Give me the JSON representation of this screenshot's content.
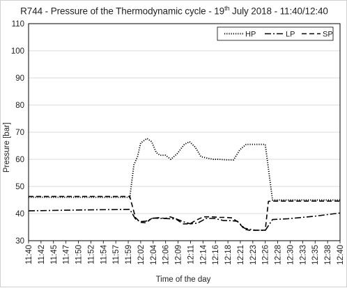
{
  "chart_data": {
    "type": "line",
    "title_main": "R744 - Pressure of the Thermodynamic cycle - 19",
    "title_sup": "th",
    "title_tail": " July 2018 - 11:40/12:40",
    "xlabel": "Time of the day",
    "ylabel": "Pressure [bar]",
    "ylim": [
      30,
      110
    ],
    "yticks": [
      30,
      40,
      50,
      60,
      70,
      80,
      90,
      100,
      110
    ],
    "xlim": [
      0,
      60
    ],
    "x_tick_labels": [
      "11:40",
      "11:42",
      "11:45",
      "11:47",
      "11:50",
      "11:52",
      "11:54",
      "11:57",
      "11:59",
      "12:02",
      "12:04",
      "12:06",
      "12:09",
      "12:11",
      "12:14",
      "12:16",
      "12:18",
      "12:21",
      "12:23",
      "12:26",
      "12:28",
      "12:30",
      "12:33",
      "12:35",
      "12:38",
      "12:40"
    ],
    "grid": "horizontal",
    "legend_position": "top-right",
    "series": [
      {
        "name": "HP",
        "style": "dotted",
        "x": [
          0,
          5,
          10,
          15,
          19.5,
          20.3,
          21,
          21.6,
          22.8,
          23.7,
          24.6,
          25.3,
          26.4,
          27.4,
          28.6,
          30,
          31,
          32.1,
          33.2,
          34.3,
          35.5,
          36.6,
          38.2,
          39.5,
          40.7,
          41.9,
          42.4,
          43.5,
          45.6,
          47,
          50,
          55,
          60
        ],
        "y": [
          46,
          46,
          46,
          46,
          46,
          58,
          61,
          66,
          67.7,
          66.5,
          62.5,
          61.5,
          61.5,
          60,
          62,
          65.5,
          66.5,
          64.5,
          61,
          60.5,
          60,
          60,
          59.8,
          59.8,
          63.5,
          65.5,
          65.5,
          65.5,
          65.5,
          45,
          45,
          45,
          45
        ]
      },
      {
        "name": "LP",
        "style": "dash-dot",
        "x": [
          0,
          6,
          13,
          19.5,
          20.6,
          21.5,
          22.6,
          24,
          25.7,
          28.5,
          29.8,
          31.2,
          32.6,
          34.2,
          35.8,
          37.6,
          38.8,
          40.2,
          41.6,
          43.6,
          45.6,
          47,
          50,
          55,
          60
        ],
        "y": [
          41,
          41.2,
          41.4,
          41.5,
          38,
          37,
          37.2,
          38.3,
          38.2,
          38,
          37,
          36.2,
          36.5,
          38.2,
          38.2,
          37.4,
          37.4,
          37.2,
          34.6,
          33.9,
          33.8,
          37.8,
          38.1,
          39,
          40.2
        ]
      },
      {
        "name": "SP",
        "style": "dashed",
        "x": [
          0,
          5,
          10,
          15,
          19.5,
          20.1,
          20.6,
          21.5,
          22.6,
          23.7,
          25,
          26.3,
          27.3,
          28.2,
          29.8,
          31.1,
          32.3,
          33.7,
          35.3,
          36.8,
          38,
          39.2,
          40.4,
          41.6,
          42.7,
          45.6,
          46.2,
          47,
          50,
          55,
          60
        ],
        "y": [
          46.3,
          46.3,
          46.3,
          46.3,
          46.3,
          42,
          38.5,
          36.8,
          36.6,
          38.2,
          38.5,
          38.2,
          38.8,
          38.2,
          36.2,
          36.2,
          37.6,
          38.8,
          38.8,
          38.6,
          38.6,
          38.4,
          36.8,
          34.2,
          33.8,
          33.9,
          44.5,
          44.6,
          44.6,
          44.6,
          44.6
        ]
      }
    ]
  }
}
